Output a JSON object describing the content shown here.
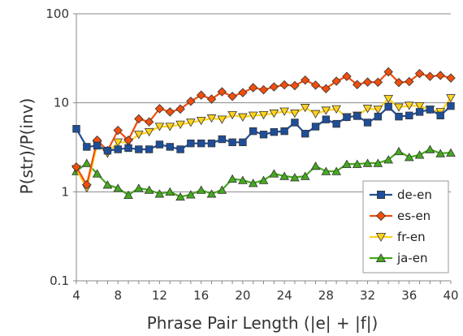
{
  "chart_data": {
    "type": "line",
    "xlabel": "Phrase Pair Length (|e| + |f|)",
    "ylabel": "P(str)/P(inv)",
    "x_ticks": [
      4,
      8,
      12,
      16,
      20,
      24,
      28,
      32,
      36,
      40
    ],
    "y_ticks": [
      0.1,
      1,
      10,
      100
    ],
    "y_tick_labels": [
      "0.1",
      "1",
      "10",
      "100"
    ],
    "xlim": [
      4,
      40
    ],
    "ylim": [
      0.1,
      100
    ],
    "y_scale": "log",
    "grid": "horizontal",
    "legend_position": "bottom-right",
    "x": [
      4,
      5,
      6,
      7,
      8,
      9,
      10,
      11,
      12,
      13,
      14,
      15,
      16,
      17,
      18,
      19,
      20,
      21,
      22,
      23,
      24,
      25,
      26,
      27,
      28,
      29,
      30,
      31,
      32,
      33,
      34,
      35,
      36,
      37,
      38,
      39,
      40
    ],
    "series": [
      {
        "name": "de-en",
        "color": "#1f4e99",
        "marker": "square",
        "values": [
          5.1,
          3.2,
          3.3,
          2.9,
          3.0,
          3.1,
          3.0,
          3.0,
          3.4,
          3.2,
          3.0,
          3.5,
          3.5,
          3.5,
          3.9,
          3.6,
          3.6,
          4.8,
          4.4,
          4.7,
          4.8,
          6.0,
          4.5,
          5.4,
          6.5,
          5.8,
          6.9,
          7.1,
          6.0,
          7.0,
          9.0,
          7.0,
          7.2,
          7.9,
          8.4,
          7.2,
          9.2
        ]
      },
      {
        "name": "es-en",
        "color": "#f04e0e",
        "marker": "diamond",
        "values": [
          1.9,
          1.2,
          3.8,
          2.9,
          4.9,
          3.8,
          6.6,
          6.1,
          8.6,
          7.9,
          8.5,
          10.4,
          12.2,
          11.0,
          13.3,
          11.8,
          13.0,
          14.8,
          14.0,
          15.1,
          15.9,
          15.6,
          18.0,
          15.8,
          14.4,
          17.5,
          19.8,
          16.0,
          17.1,
          17.0,
          22.3,
          16.9,
          17.3,
          21.3,
          19.8,
          20.3,
          19.0
        ]
      },
      {
        "name": "fr-en",
        "color": "#ffd21f",
        "marker": "triangle-down",
        "values": [
          1.8,
          1.1,
          3.4,
          2.7,
          3.6,
          3.6,
          4.4,
          4.7,
          5.4,
          5.4,
          5.7,
          6.0,
          6.3,
          6.7,
          6.5,
          7.3,
          6.9,
          7.2,
          7.3,
          7.6,
          8.0,
          7.6,
          8.8,
          7.5,
          8.2,
          8.5,
          6.9,
          7.2,
          8.6,
          8.4,
          11.1,
          8.9,
          9.3,
          9.2,
          8.4,
          7.9,
          11.3
        ]
      },
      {
        "name": "ja-en",
        "color": "#46a820",
        "marker": "triangle-up",
        "values": [
          1.7,
          2.1,
          1.6,
          1.2,
          1.1,
          0.92,
          1.1,
          1.05,
          0.95,
          1.0,
          0.88,
          0.93,
          1.05,
          0.95,
          1.05,
          1.4,
          1.35,
          1.25,
          1.35,
          1.6,
          1.5,
          1.45,
          1.5,
          1.95,
          1.7,
          1.7,
          2.05,
          2.05,
          2.1,
          2.1,
          2.3,
          2.85,
          2.45,
          2.6,
          3.0,
          2.7,
          2.75
        ]
      }
    ]
  }
}
